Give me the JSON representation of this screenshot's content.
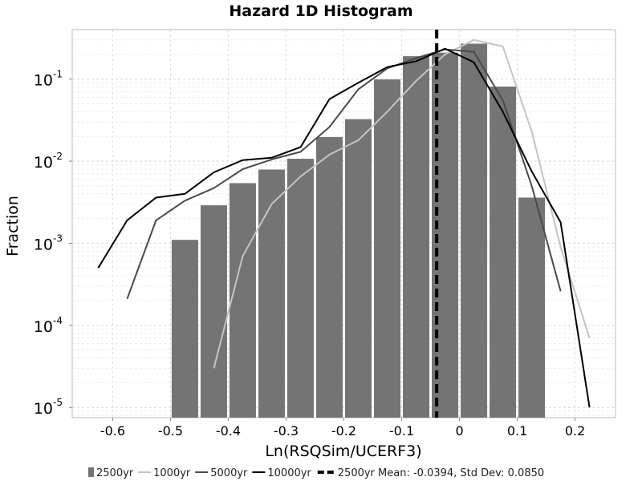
{
  "chart_data": {
    "type": "bar",
    "title": "Hazard 1D Histogram",
    "xlabel": "Ln(RSQSim/UCERF3)",
    "ylabel": "Fraction",
    "xlim": [
      -0.67,
      0.27
    ],
    "ylim": [
      7.5e-06,
      0.4
    ],
    "yscale": "log",
    "grid": true,
    "legend_position": "bottom",
    "x_ticks": [
      -0.6,
      -0.5,
      -0.4,
      -0.3,
      -0.2,
      -0.1,
      0,
      0.1,
      0.2
    ],
    "x_tick_labels": [
      "-0.6",
      "-0.5",
      "-0.4",
      "-0.3",
      "-0.2",
      "-0.1",
      "0",
      "0.1",
      "0.2"
    ],
    "y_ticks": [
      1e-05,
      0.0001,
      0.001,
      0.01,
      0.1
    ],
    "y_tick_labels": [
      {
        "base": "10",
        "exp": "-5"
      },
      {
        "base": "10",
        "exp": "-4"
      },
      {
        "base": "10",
        "exp": "-3"
      },
      {
        "base": "10",
        "exp": "-2"
      },
      {
        "base": "10",
        "exp": "-1"
      }
    ],
    "bins": {
      "name": "2500yr",
      "color": "#747474",
      "bin_width": 0.05,
      "centers": [
        -0.475,
        -0.425,
        -0.375,
        -0.325,
        -0.275,
        -0.225,
        -0.175,
        -0.125,
        -0.075,
        -0.025,
        0.025,
        0.075,
        0.125
      ],
      "values": [
        0.0011,
        0.0029,
        0.0054,
        0.0079,
        0.0107,
        0.0197,
        0.0325,
        0.099,
        0.19,
        0.21,
        0.27,
        0.081,
        0.0036
      ]
    },
    "lines": [
      {
        "name": "1000yr",
        "color": "#c4c4c4",
        "x": [
          -0.425,
          -0.375,
          -0.325,
          -0.275,
          -0.225,
          -0.175,
          -0.125,
          -0.075,
          -0.025,
          0.025,
          0.075,
          0.125,
          0.175,
          0.225
        ],
        "y": [
          3e-05,
          0.0007,
          0.003,
          0.0065,
          0.012,
          0.018,
          0.04,
          0.095,
          0.2,
          0.3,
          0.25,
          0.023,
          0.0009,
          7e-05
        ]
      },
      {
        "name": "5000yr",
        "color": "#4a4a4a",
        "x": [
          -0.575,
          -0.525,
          -0.475,
          -0.425,
          -0.375,
          -0.325,
          -0.275,
          -0.225,
          -0.175,
          -0.125,
          -0.075,
          -0.025,
          0.025,
          0.075,
          0.125,
          0.175
        ],
        "y": [
          0.00021,
          0.0019,
          0.0033,
          0.0047,
          0.008,
          0.0105,
          0.013,
          0.026,
          0.075,
          0.135,
          0.18,
          0.23,
          0.215,
          0.055,
          0.005,
          0.00026
        ]
      },
      {
        "name": "10000yr",
        "color": "#000000",
        "x": [
          -0.625,
          -0.575,
          -0.525,
          -0.475,
          -0.425,
          -0.375,
          -0.325,
          -0.275,
          -0.225,
          -0.175,
          -0.125,
          -0.075,
          -0.025,
          0.025,
          0.075,
          0.125,
          0.175,
          0.225
        ],
        "y": [
          0.0005,
          0.0019,
          0.0036,
          0.004,
          0.0073,
          0.0103,
          0.011,
          0.0148,
          0.057,
          0.09,
          0.14,
          0.165,
          0.235,
          0.16,
          0.04,
          0.0075,
          0.0018,
          1e-05
        ]
      }
    ],
    "mean_line": {
      "name": "2500yr Mean: -0.0394, Std Dev: 0.0850",
      "x": -0.0394,
      "color": "#000000",
      "style": "dashed"
    }
  }
}
